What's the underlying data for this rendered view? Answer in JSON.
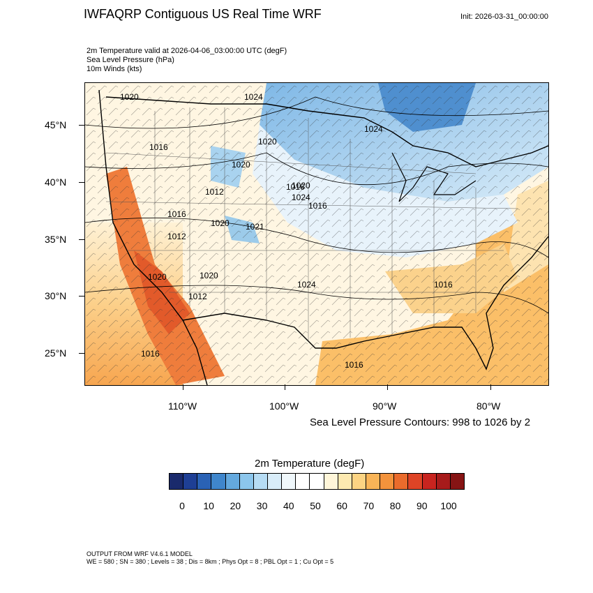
{
  "header": {
    "title": "IWFAQRP Contiguous US Real Time WRF",
    "init": "Init: 2026-03-31_00:00:00"
  },
  "fields": [
    "2m Temperature valid at 2026-04-06_03:00:00 UTC   (degF)",
    "Sea Level Pressure   (hPa)",
    "10m Winds   (kts)"
  ],
  "axes": {
    "lat_labels": [
      "45°N",
      "40°N",
      "35°N",
      "30°N",
      "25°N"
    ],
    "lon_labels": [
      "110°W",
      "100°W",
      "90°W",
      "80°W"
    ]
  },
  "contour_labels": [
    "1024",
    "1020",
    "1024",
    "1016",
    "1020",
    "1016",
    "1020",
    "1016",
    "1012",
    "1012",
    "1020",
    "1020",
    "1020",
    "1021",
    "1024",
    "1020",
    "1024",
    "1016",
    "1016",
    "1012",
    "1016",
    "1016"
  ],
  "contour_note": "Sea Level Pressure Contours: 998 to 1026 by 2",
  "colorbar": {
    "title": "2m Temperature  (degF)",
    "labels": [
      "0",
      "10",
      "20",
      "30",
      "40",
      "50",
      "60",
      "70",
      "80",
      "90",
      "100"
    ],
    "colors": [
      "#1a2a6c",
      "#1e3f95",
      "#2a62b5",
      "#3f86cc",
      "#64a9de",
      "#8cc6ec",
      "#b6dcf4",
      "#d9edf9",
      "#f0f8fc",
      "#ffffff",
      "#ffffff",
      "#fff6d9",
      "#fde9b0",
      "#fcd483",
      "#f9b457",
      "#f3933c",
      "#ea6b2c",
      "#de4426",
      "#c8241f",
      "#a71b1b",
      "#861414"
    ]
  },
  "model_note": [
    "OUTPUT FROM WRF V4.6.1 MODEL",
    "WE = 580 ; SN = 380 ; Levels = 38 ; Dis = 8km ; Phys Opt = 8 ; PBL Opt = 1 ; Cu Opt = 5"
  ]
}
